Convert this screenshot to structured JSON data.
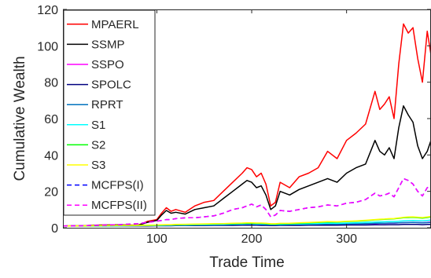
{
  "chart_data": {
    "type": "line",
    "title": "",
    "xlabel": "Trade Time",
    "ylabel": "Cumulative Wealth",
    "xlim": [
      1,
      389
    ],
    "ylim": [
      0,
      120
    ],
    "x_ticks": [
      100,
      200,
      300
    ],
    "y_ticks": [
      0,
      20,
      40,
      60,
      80,
      100,
      120
    ],
    "grid": false,
    "legend_position": "top-left",
    "x": [
      1,
      20,
      40,
      60,
      80,
      90,
      100,
      105,
      110,
      115,
      120,
      130,
      140,
      150,
      160,
      170,
      180,
      190,
      195,
      200,
      205,
      210,
      215,
      220,
      225,
      230,
      240,
      250,
      260,
      270,
      280,
      290,
      300,
      310,
      320,
      330,
      335,
      340,
      345,
      350,
      355,
      360,
      365,
      370,
      375,
      380,
      385,
      389
    ],
    "series": [
      {
        "name": "MPAERL",
        "color": "#ff0000",
        "dash": "solid",
        "values": [
          1.0,
          1.1,
          1.5,
          1.6,
          1.4,
          3.5,
          4.5,
          8.0,
          11.0,
          9.0,
          10.0,
          8.5,
          12.0,
          14.0,
          15.0,
          20.0,
          25.0,
          30.0,
          33.0,
          32.0,
          28.0,
          30.0,
          24.0,
          12.0,
          14.0,
          25.0,
          22.0,
          28.0,
          30.0,
          33.0,
          42.0,
          38.0,
          48.0,
          52.0,
          57.0,
          75.0,
          65.0,
          68.0,
          72.0,
          60.0,
          90.0,
          112.0,
          107.0,
          110.0,
          93.0,
          80.0,
          108.0,
          95.0
        ]
      },
      {
        "name": "SSMP",
        "color": "#000000",
        "dash": "solid",
        "values": [
          1.0,
          1.1,
          1.4,
          1.5,
          1.3,
          3.0,
          4.0,
          7.0,
          9.5,
          8.0,
          8.5,
          7.5,
          10.0,
          11.0,
          12.0,
          16.0,
          20.0,
          24.0,
          26.0,
          25.0,
          22.0,
          23.0,
          18.0,
          10.0,
          12.0,
          20.0,
          18.0,
          21.0,
          23.0,
          25.0,
          27.0,
          25.0,
          30.0,
          33.0,
          35.0,
          48.0,
          42.0,
          40.0,
          44.0,
          38.0,
          55.0,
          67.0,
          62.0,
          58.0,
          45.0,
          38.0,
          42.0,
          48.0
        ]
      },
      {
        "name": "SSPO",
        "color": "#ff00ff",
        "dash": "solid",
        "values": [
          1.0,
          1.0,
          1.0,
          1.1,
          1.1,
          1.1,
          1.2,
          1.2,
          1.3,
          1.2,
          1.3,
          1.3,
          1.4,
          1.4,
          1.5,
          1.5,
          1.6,
          1.7,
          1.8,
          1.8,
          1.7,
          1.7,
          1.6,
          1.5,
          1.5,
          1.6,
          1.6,
          1.7,
          1.8,
          1.9,
          2.0,
          1.9,
          2.0,
          2.1,
          2.2,
          2.3,
          2.4,
          2.4,
          2.5,
          2.5,
          2.7,
          2.8,
          2.9,
          3.0,
          2.9,
          2.8,
          3.0,
          3.2
        ]
      },
      {
        "name": "SPOLC",
        "color": "#000080",
        "dash": "solid",
        "values": [
          1.0,
          1.0,
          1.0,
          1.0,
          1.0,
          1.0,
          1.1,
          1.1,
          1.1,
          1.1,
          1.2,
          1.2,
          1.2,
          1.2,
          1.3,
          1.3,
          1.3,
          1.4,
          1.4,
          1.4,
          1.4,
          1.3,
          1.3,
          1.2,
          1.2,
          1.3,
          1.3,
          1.3,
          1.4,
          1.4,
          1.4,
          1.4,
          1.5,
          1.5,
          1.5,
          1.6,
          1.6,
          1.6,
          1.7,
          1.7,
          1.7,
          1.8,
          1.8,
          1.8,
          1.8,
          1.7,
          1.8,
          1.8
        ]
      },
      {
        "name": "RPRT",
        "color": "#0072bd",
        "dash": "solid",
        "values": [
          1.0,
          1.0,
          1.1,
          1.1,
          1.1,
          1.2,
          1.2,
          1.3,
          1.3,
          1.3,
          1.4,
          1.4,
          1.5,
          1.5,
          1.6,
          1.7,
          1.8,
          1.9,
          2.0,
          2.0,
          1.9,
          1.9,
          1.8,
          1.6,
          1.6,
          1.7,
          1.8,
          1.8,
          1.9,
          2.0,
          2.1,
          2.0,
          2.1,
          2.2,
          2.3,
          2.4,
          2.5,
          2.5,
          2.6,
          2.6,
          2.7,
          2.8,
          2.8,
          2.9,
          2.8,
          2.7,
          2.8,
          2.9
        ]
      },
      {
        "name": "S1",
        "color": "#00ffff",
        "dash": "solid",
        "values": [
          1.0,
          1.0,
          1.1,
          1.1,
          1.2,
          1.2,
          1.3,
          1.3,
          1.4,
          1.4,
          1.5,
          1.5,
          1.6,
          1.7,
          1.8,
          1.9,
          2.0,
          2.1,
          2.2,
          2.2,
          2.1,
          2.1,
          2.0,
          1.8,
          1.8,
          1.9,
          2.0,
          2.1,
          2.2,
          2.3,
          2.5,
          2.4,
          2.6,
          2.7,
          2.9,
          3.1,
          3.2,
          3.3,
          3.4,
          3.4,
          3.6,
          3.8,
          3.9,
          4.0,
          3.9,
          3.8,
          4.0,
          4.2
        ]
      },
      {
        "name": "S2",
        "color": "#00ff00",
        "dash": "solid",
        "values": [
          1.0,
          1.0,
          1.1,
          1.2,
          1.2,
          1.3,
          1.4,
          1.5,
          1.6,
          1.6,
          1.7,
          1.8,
          1.9,
          2.0,
          2.1,
          2.2,
          2.3,
          2.4,
          2.5,
          2.5,
          2.4,
          2.4,
          2.3,
          2.0,
          2.0,
          2.2,
          2.3,
          2.5,
          2.7,
          2.9,
          3.2,
          3.1,
          3.4,
          3.6,
          3.9,
          4.3,
          4.5,
          4.6,
          4.8,
          4.9,
          5.2,
          5.5,
          5.6,
          5.7,
          5.5,
          5.3,
          5.6,
          5.9
        ]
      },
      {
        "name": "S3",
        "color": "#ffff00",
        "dash": "solid",
        "values": [
          1.0,
          1.1,
          1.2,
          1.3,
          1.3,
          1.4,
          1.5,
          1.6,
          1.7,
          1.7,
          1.8,
          1.9,
          2.0,
          2.1,
          2.2,
          2.3,
          2.5,
          2.6,
          2.7,
          2.7,
          2.6,
          2.6,
          2.5,
          2.2,
          2.2,
          2.4,
          2.5,
          2.7,
          2.9,
          3.1,
          3.4,
          3.3,
          3.6,
          3.8,
          4.1,
          4.5,
          4.7,
          4.8,
          5.0,
          5.1,
          5.4,
          5.7,
          5.9,
          6.0,
          5.8,
          5.6,
          5.9,
          6.2
        ]
      },
      {
        "name": "MCFPS(I)",
        "color": "#0000ff",
        "dash": "dashed",
        "values": [
          1.0,
          1.1,
          1.4,
          1.7,
          2.2,
          3.0,
          3.6,
          4.0,
          4.5,
          4.5,
          5.0,
          5.5,
          5.5,
          6.0,
          6.5,
          8.0,
          10.0,
          11.0,
          12.0,
          13.0,
          11.5,
          12.5,
          10.0,
          6.0,
          7.0,
          9.5,
          9.0,
          10.0,
          11.0,
          11.5,
          12.5,
          12.0,
          13.5,
          14.0,
          15.5,
          19.0,
          17.5,
          18.0,
          19.0,
          17.0,
          22.0,
          27.0,
          26.0,
          24.0,
          20.0,
          17.5,
          22.0,
          23.0
        ]
      },
      {
        "name": "MCFPS(II)",
        "color": "#ff00ff",
        "dash": "dashed",
        "values": [
          1.0,
          1.1,
          1.4,
          1.7,
          2.2,
          3.0,
          3.6,
          4.0,
          4.5,
          4.5,
          5.0,
          5.5,
          5.5,
          6.0,
          6.5,
          8.0,
          10.0,
          11.0,
          12.0,
          13.0,
          11.5,
          12.5,
          10.0,
          6.0,
          7.0,
          9.5,
          9.0,
          10.0,
          11.0,
          11.5,
          12.5,
          12.0,
          13.5,
          14.0,
          15.5,
          19.0,
          17.5,
          18.0,
          19.0,
          17.0,
          22.0,
          27.0,
          26.0,
          24.0,
          20.0,
          17.5,
          22.0,
          23.0
        ]
      }
    ]
  }
}
